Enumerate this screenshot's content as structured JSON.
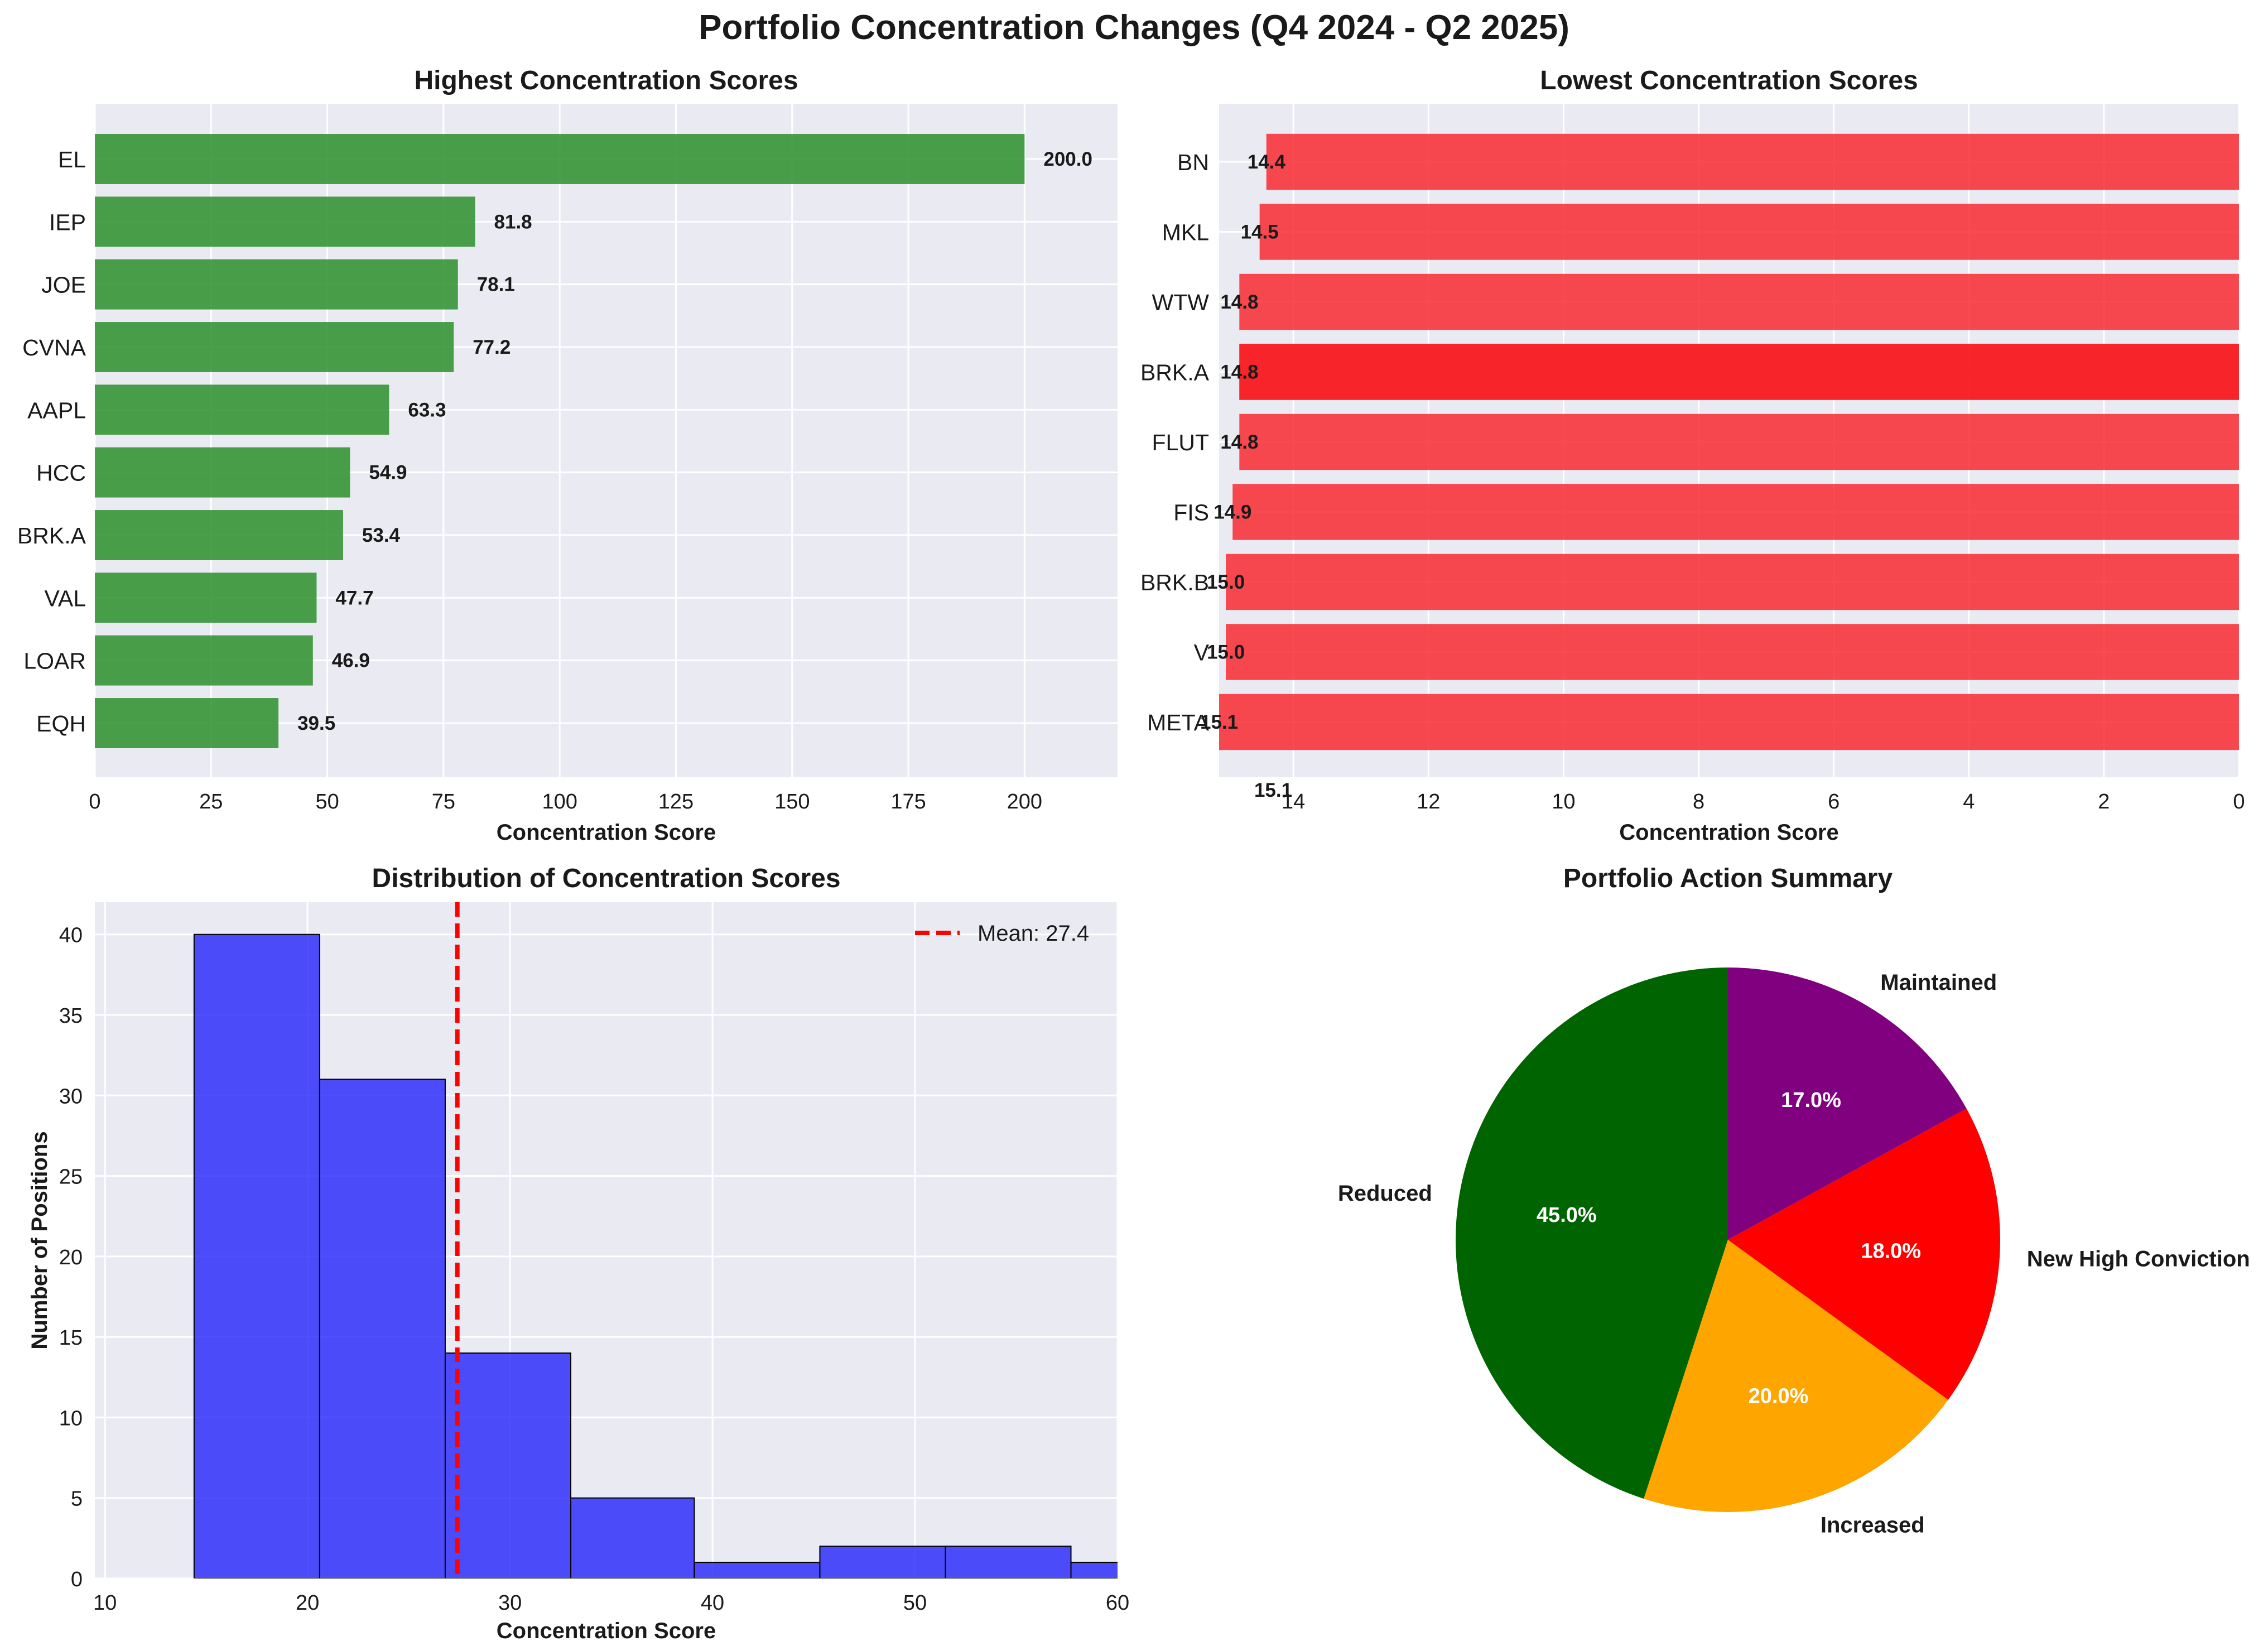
{
  "title": "Portfolio Concentration Changes (Q4 2024 - Q2 2025)",
  "colors": {
    "panel_bg": "#eaeaf2",
    "grid": "#ffffff",
    "high_bar": "#2a8f2a",
    "low_bar": "#f81e23",
    "hist_bar": "#1e1efb",
    "mean_line": "#ff0000",
    "text": "#1a1a1a"
  },
  "chart_data": [
    {
      "id": "highest",
      "type": "bar",
      "orientation": "horizontal",
      "title": "Highest Concentration Scores",
      "xlabel": "Concentration Score",
      "ylabel": "",
      "xlim": [
        0,
        220
      ],
      "xticks": [
        0,
        25,
        50,
        75,
        100,
        125,
        150,
        175,
        200
      ],
      "grid": true,
      "categories": [
        "EL",
        "IEP",
        "JOE",
        "CVNA",
        "AAPL",
        "HCC",
        "BRK.A",
        "VAL",
        "LOAR",
        "EQH"
      ],
      "values": [
        200.0,
        81.8,
        78.1,
        77.2,
        63.3,
        54.9,
        53.4,
        47.7,
        46.9,
        39.5
      ],
      "data_labels": [
        "200.0",
        "81.8",
        "78.1",
        "77.2",
        "63.3",
        "54.9",
        "53.4",
        "47.7",
        "46.9",
        "39.5"
      ]
    },
    {
      "id": "lowest",
      "type": "bar",
      "orientation": "horizontal",
      "x_axis_inverted": true,
      "title": "Lowest Concentration Scores",
      "xlabel": "Concentration Score",
      "ylabel": "",
      "xlim": [
        15.1,
        0
      ],
      "xticks": [
        14,
        12,
        10,
        8,
        6,
        4,
        2,
        0
      ],
      "grid": true,
      "categories": [
        "BN",
        "MKL",
        "WTW",
        "BRK.A",
        "FLUT",
        "FIS",
        "BRK.B",
        "V",
        "META"
      ],
      "values": [
        14.4,
        14.5,
        14.8,
        14.8,
        14.8,
        14.9,
        15.0,
        15.0,
        15.1
      ],
      "data_labels": [
        "14.4",
        "14.5",
        "14.8",
        "14.8",
        "14.8",
        "14.9",
        "15.0",
        "15.0",
        "15.1"
      ],
      "stray_label": "15.1"
    },
    {
      "id": "distribution",
      "type": "histogram",
      "title": "Distribution of Concentration Scores",
      "xlabel": "Concentration Score",
      "ylabel": "Number of Positions",
      "xlim": [
        9.5,
        60
      ],
      "ylim": [
        0,
        42
      ],
      "xticks": [
        10,
        20,
        30,
        40,
        50,
        60
      ],
      "yticks": [
        0,
        5,
        10,
        15,
        20,
        25,
        30,
        35,
        40
      ],
      "grid": true,
      "bin_edges": [
        14.4,
        20.6,
        26.8,
        33.0,
        39.1,
        45.3,
        51.5,
        57.7,
        63.9
      ],
      "counts": [
        40,
        31,
        14,
        5,
        1,
        2,
        2,
        1
      ],
      "mean": 27.4,
      "legend": {
        "position": "upper right",
        "label": "Mean: 27.4"
      }
    },
    {
      "id": "actions",
      "type": "pie",
      "title": "Portfolio Action Summary",
      "start_angle_deg": 90,
      "direction": "counterclockwise",
      "slices": [
        {
          "label": "Reduced",
          "value": 45.0,
          "pct_label": "45.0%",
          "color": "#006400"
        },
        {
          "label": "Increased",
          "value": 20.0,
          "pct_label": "20.0%",
          "color": "#ffa500"
        },
        {
          "label": "New High Conviction",
          "value": 18.0,
          "pct_label": "18.0%",
          "color": "#ff0000"
        },
        {
          "label": "Maintained",
          "value": 17.0,
          "pct_label": "17.0%",
          "color": "#800080"
        }
      ]
    }
  ]
}
